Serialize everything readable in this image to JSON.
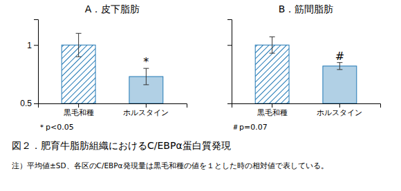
{
  "chart_data": [
    {
      "type": "bar",
      "title": "A．皮下脂肪",
      "categories": [
        "黒毛和種",
        "ホルスタイン"
      ],
      "values": [
        1.0,
        0.73
      ],
      "errors": [
        0.1,
        0.07
      ],
      "ylim": [
        0.5,
        1.22
      ],
      "yticks": [
        0.5,
        1
      ],
      "annotations": [
        {
          "text": "*",
          "category_index": 1
        },
        {
          "text": "＊p<0.05"
        }
      ]
    },
    {
      "type": "bar",
      "title": "B．筋間脂肪",
      "categories": [
        "黒毛和種",
        "ホルスタイン"
      ],
      "values": [
        1.0,
        0.82
      ],
      "errors": [
        0.07,
        0.03
      ],
      "ylim": [
        0.5,
        1.22
      ],
      "yticks": [
        0.5,
        1
      ],
      "tick_labels": "x",
      "annotations": [
        {
          "text": "#",
          "category_index": 1
        },
        {
          "text": "＃p=0.07"
        }
      ]
    }
  ],
  "caption": "図２．肥育牛脂肪組織におけるC/EBPα蛋白質発現",
  "note": "注）平均値±SD、各区のC/EBPα発現量は黒毛和種の値を１とした時の相対値で表している。"
}
